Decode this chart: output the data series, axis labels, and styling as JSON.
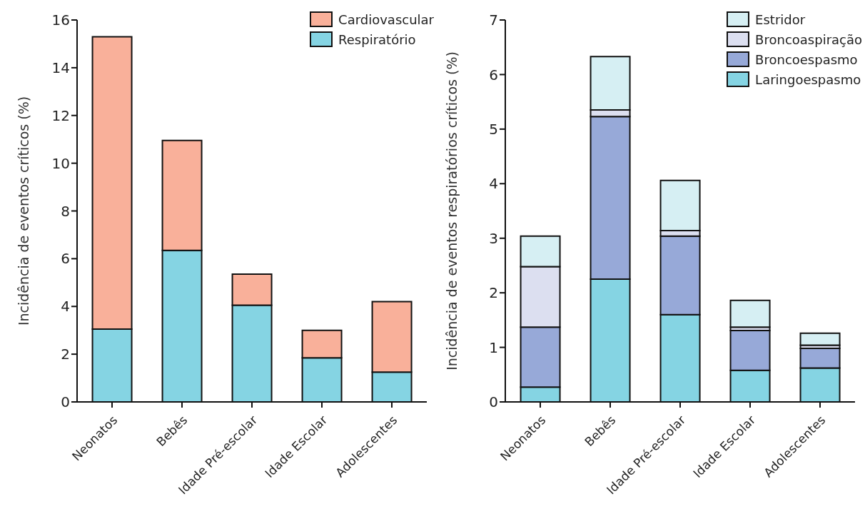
{
  "chart_data": [
    {
      "type": "bar",
      "ylabel": "Incidência de eventos críticos (%)",
      "categories": [
        "Neonatos",
        "Bebês",
        "Idade Pré-escolar",
        "Idade Escolar",
        "Adolescentes"
      ],
      "stacked": true,
      "ylim": [
        0,
        16
      ],
      "yticks": [
        0,
        2,
        4,
        6,
        8,
        10,
        12,
        14,
        16
      ],
      "grid": false,
      "legend": "top right",
      "series": [
        {
          "name": "Respiratório",
          "color": "#85d4e3",
          "values": [
            3.05,
            6.35,
            4.05,
            1.85,
            1.25
          ]
        },
        {
          "name": "Cardiovascular",
          "color": "#f9b09a",
          "values": [
            12.25,
            4.6,
            1.3,
            1.15,
            2.95
          ]
        }
      ]
    },
    {
      "type": "bar",
      "ylabel": "Incidência de eventos respiratórios críticos (%)",
      "categories": [
        "Neonatos",
        "Bebês",
        "Idade Pré-escolar",
        "Idade Escolar",
        "Adolescentes"
      ],
      "stacked": true,
      "ylim": [
        0,
        7
      ],
      "yticks": [
        0,
        1,
        2,
        3,
        4,
        5,
        6,
        7
      ],
      "grid": false,
      "legend": "top right",
      "series": [
        {
          "name": "Laringoespasmo",
          "color": "#85d4e3",
          "values": [
            0.27,
            2.25,
            1.6,
            0.58,
            0.62
          ]
        },
        {
          "name": "Broncoespasmo",
          "color": "#97a9d8",
          "values": [
            1.1,
            2.98,
            1.44,
            0.73,
            0.36
          ]
        },
        {
          "name": "Broncoaspiração",
          "color": "#dcdff0",
          "values": [
            1.11,
            0.12,
            0.1,
            0.06,
            0.06
          ]
        },
        {
          "name": "Estridor",
          "color": "#d6eff3",
          "values": [
            0.56,
            0.98,
            0.92,
            0.49,
            0.22
          ]
        }
      ]
    }
  ]
}
